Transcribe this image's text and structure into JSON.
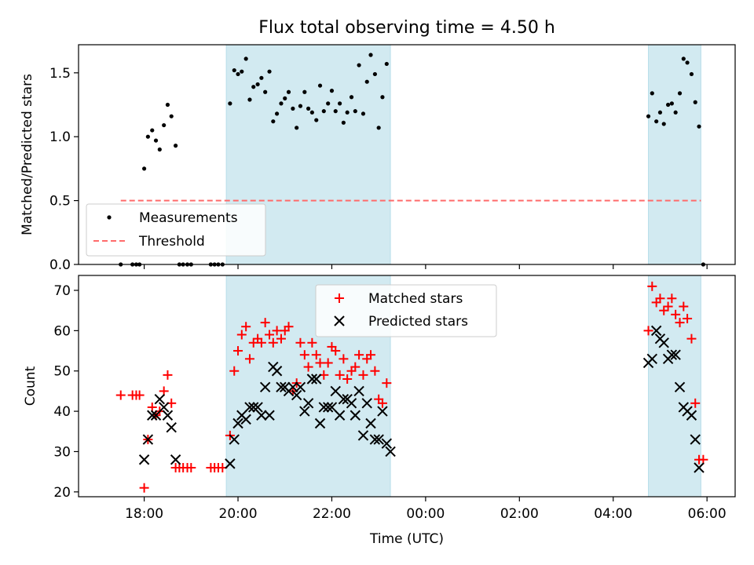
{
  "figure": {
    "title": "Flux total observing time = 4.50 h"
  },
  "chart_data": [
    {
      "type": "scatter",
      "ylabel": "Matched/Predicted stars",
      "xlim": [
        16.6,
        30.6
      ],
      "ylim": [
        0,
        1.72
      ],
      "yticks": [
        0.0,
        0.5,
        1.0,
        1.5
      ],
      "yticklabels": [
        "0.0",
        "0.5",
        "1.0",
        "1.5"
      ],
      "shaded_regions": [
        [
          19.75,
          23.25
        ],
        [
          28.75,
          29.87
        ]
      ],
      "threshold": {
        "name": "Threshold",
        "value": 0.5,
        "x_range": [
          17.5,
          29.87
        ],
        "color": "#ff6b6b"
      },
      "legend": {
        "placement": "lower-left",
        "entries": [
          "Measurements",
          "Threshold"
        ]
      },
      "series": [
        {
          "name": "Measurements",
          "marker": "dot",
          "color": "#000000",
          "points": [
            [
              17.5,
              0
            ],
            [
              17.75,
              0
            ],
            [
              17.83,
              0
            ],
            [
              17.9,
              0
            ],
            [
              18.0,
              0.75
            ],
            [
              18.08,
              1.0
            ],
            [
              18.17,
              1.05
            ],
            [
              18.25,
              0.97
            ],
            [
              18.33,
              0.9
            ],
            [
              18.42,
              1.09
            ],
            [
              18.5,
              1.25
            ],
            [
              18.58,
              1.16
            ],
            [
              18.67,
              0.93
            ],
            [
              18.75,
              0
            ],
            [
              18.83,
              0
            ],
            [
              18.92,
              0
            ],
            [
              19.0,
              0
            ],
            [
              19.42,
              0
            ],
            [
              19.5,
              0
            ],
            [
              19.58,
              0
            ],
            [
              19.67,
              0
            ],
            [
              19.83,
              1.26
            ],
            [
              19.92,
              1.52
            ],
            [
              20.0,
              1.49
            ],
            [
              20.08,
              1.51
            ],
            [
              20.17,
              1.61
            ],
            [
              20.25,
              1.29
            ],
            [
              20.33,
              1.39
            ],
            [
              20.42,
              1.41
            ],
            [
              20.5,
              1.46
            ],
            [
              20.58,
              1.35
            ],
            [
              20.67,
              1.51
            ],
            [
              20.75,
              1.12
            ],
            [
              20.83,
              1.18
            ],
            [
              20.92,
              1.26
            ],
            [
              21.0,
              1.3
            ],
            [
              21.08,
              1.35
            ],
            [
              21.17,
              1.22
            ],
            [
              21.25,
              1.07
            ],
            [
              21.33,
              1.24
            ],
            [
              21.42,
              1.35
            ],
            [
              21.5,
              1.22
            ],
            [
              21.58,
              1.19
            ],
            [
              21.67,
              1.13
            ],
            [
              21.75,
              1.4
            ],
            [
              21.83,
              1.2
            ],
            [
              21.92,
              1.26
            ],
            [
              22.0,
              1.36
            ],
            [
              22.08,
              1.2
            ],
            [
              22.17,
              1.26
            ],
            [
              22.25,
              1.11
            ],
            [
              22.33,
              1.19
            ],
            [
              22.42,
              1.31
            ],
            [
              22.5,
              1.2
            ],
            [
              22.58,
              1.56
            ],
            [
              22.67,
              1.18
            ],
            [
              22.75,
              1.43
            ],
            [
              22.83,
              1.64
            ],
            [
              22.92,
              1.49
            ],
            [
              23.0,
              1.07
            ],
            [
              23.08,
              1.31
            ],
            [
              23.17,
              1.57
            ],
            [
              28.75,
              1.16
            ],
            [
              28.83,
              1.34
            ],
            [
              28.92,
              1.12
            ],
            [
              29.0,
              1.19
            ],
            [
              29.08,
              1.1
            ],
            [
              29.17,
              1.25
            ],
            [
              29.25,
              1.26
            ],
            [
              29.33,
              1.19
            ],
            [
              29.42,
              1.34
            ],
            [
              29.5,
              1.61
            ],
            [
              29.58,
              1.58
            ],
            [
              29.67,
              1.49
            ],
            [
              29.75,
              1.27
            ],
            [
              29.83,
              1.08
            ],
            [
              29.92,
              0
            ]
          ]
        }
      ]
    },
    {
      "type": "scatter",
      "xlabel": "Time (UTC)",
      "ylabel": "Count",
      "xlim": [
        16.6,
        30.6
      ],
      "ylim": [
        18.8,
        73.7
      ],
      "yticks": [
        20,
        30,
        40,
        50,
        60,
        70
      ],
      "yticklabels": [
        "20",
        "30",
        "40",
        "50",
        "60",
        "70"
      ],
      "xticks": [
        18,
        20,
        22,
        24,
        26,
        28,
        30
      ],
      "xticklabels": [
        "18:00",
        "20:00",
        "22:00",
        "00:00",
        "02:00",
        "04:00",
        "06:00"
      ],
      "shaded_regions": [
        [
          19.75,
          23.25
        ],
        [
          28.75,
          29.87
        ]
      ],
      "legend": {
        "placement": "top-center",
        "entries": [
          "Matched stars",
          "Predicted stars"
        ]
      },
      "series": [
        {
          "name": "Matched stars",
          "marker": "plus",
          "color": "#ff0000",
          "points": [
            [
              17.5,
              44
            ],
            [
              17.75,
              44
            ],
            [
              17.83,
              44
            ],
            [
              17.9,
              44
            ],
            [
              18.0,
              21
            ],
            [
              18.08,
              33
            ],
            [
              18.17,
              41
            ],
            [
              18.25,
              39
            ],
            [
              18.33,
              40
            ],
            [
              18.42,
              45
            ],
            [
              18.5,
              49
            ],
            [
              18.58,
              42
            ],
            [
              18.67,
              26
            ],
            [
              18.75,
              26
            ],
            [
              18.83,
              26
            ],
            [
              18.92,
              26
            ],
            [
              19.0,
              26
            ],
            [
              19.42,
              26
            ],
            [
              19.5,
              26
            ],
            [
              19.58,
              26
            ],
            [
              19.67,
              26
            ],
            [
              19.83,
              34
            ],
            [
              19.92,
              50
            ],
            [
              20.0,
              55
            ],
            [
              20.08,
              59
            ],
            [
              20.17,
              61
            ],
            [
              20.25,
              53
            ],
            [
              20.33,
              57
            ],
            [
              20.42,
              58
            ],
            [
              20.5,
              57
            ],
            [
              20.58,
              62
            ],
            [
              20.67,
              59
            ],
            [
              20.75,
              57
            ],
            [
              20.83,
              60
            ],
            [
              20.92,
              58
            ],
            [
              21.0,
              60
            ],
            [
              21.08,
              61
            ],
            [
              21.17,
              45
            ],
            [
              21.25,
              47
            ],
            [
              21.33,
              57
            ],
            [
              21.42,
              54
            ],
            [
              21.5,
              51
            ],
            [
              21.58,
              57
            ],
            [
              21.67,
              54
            ],
            [
              21.75,
              52
            ],
            [
              21.83,
              49
            ],
            [
              21.92,
              52
            ],
            [
              22.0,
              56
            ],
            [
              22.08,
              55
            ],
            [
              22.17,
              49
            ],
            [
              22.25,
              53
            ],
            [
              22.33,
              48
            ],
            [
              22.42,
              50
            ],
            [
              22.5,
              51
            ],
            [
              22.58,
              54
            ],
            [
              22.67,
              49
            ],
            [
              22.75,
              53
            ],
            [
              22.83,
              54
            ],
            [
              22.92,
              50
            ],
            [
              23.0,
              43
            ],
            [
              23.08,
              42
            ],
            [
              23.17,
              47
            ],
            [
              28.75,
              60
            ],
            [
              28.83,
              71
            ],
            [
              28.92,
              67
            ],
            [
              29.0,
              68
            ],
            [
              29.08,
              65
            ],
            [
              29.17,
              66
            ],
            [
              29.25,
              68
            ],
            [
              29.33,
              64
            ],
            [
              29.42,
              62
            ],
            [
              29.5,
              66
            ],
            [
              29.58,
              63
            ],
            [
              29.67,
              58
            ],
            [
              29.75,
              42
            ],
            [
              29.83,
              28
            ],
            [
              29.92,
              28
            ]
          ]
        },
        {
          "name": "Predicted stars",
          "marker": "x",
          "color": "#000000",
          "points": [
            [
              18.0,
              28
            ],
            [
              18.08,
              33
            ],
            [
              18.17,
              39
            ],
            [
              18.25,
              39
            ],
            [
              18.33,
              43
            ],
            [
              18.42,
              41
            ],
            [
              18.5,
              39
            ],
            [
              18.58,
              36
            ],
            [
              18.67,
              28
            ],
            [
              19.83,
              27
            ],
            [
              19.92,
              33
            ],
            [
              20.0,
              37
            ],
            [
              20.08,
              39
            ],
            [
              20.17,
              38
            ],
            [
              20.25,
              41
            ],
            [
              20.33,
              41
            ],
            [
              20.42,
              41
            ],
            [
              20.5,
              39
            ],
            [
              20.58,
              46
            ],
            [
              20.67,
              39
            ],
            [
              20.75,
              51
            ],
            [
              20.83,
              50
            ],
            [
              20.92,
              46
            ],
            [
              21.0,
              46
            ],
            [
              21.08,
              45
            ],
            [
              21.17,
              46
            ],
            [
              21.25,
              44
            ],
            [
              21.33,
              46
            ],
            [
              21.42,
              40
            ],
            [
              21.5,
              42
            ],
            [
              21.58,
              48
            ],
            [
              21.67,
              48
            ],
            [
              21.75,
              37
            ],
            [
              21.83,
              41
            ],
            [
              21.92,
              41
            ],
            [
              22.0,
              41
            ],
            [
              22.08,
              45
            ],
            [
              22.17,
              39
            ],
            [
              22.25,
              43
            ],
            [
              22.33,
              43
            ],
            [
              22.42,
              42
            ],
            [
              22.5,
              39
            ],
            [
              22.58,
              45
            ],
            [
              22.67,
              34
            ],
            [
              22.75,
              42
            ],
            [
              22.83,
              37
            ],
            [
              22.92,
              33
            ],
            [
              23.0,
              33
            ],
            [
              23.08,
              40
            ],
            [
              23.17,
              32
            ],
            [
              23.25,
              30
            ],
            [
              28.75,
              52
            ],
            [
              28.83,
              53
            ],
            [
              28.92,
              60
            ],
            [
              29.0,
              58
            ],
            [
              29.08,
              57
            ],
            [
              29.17,
              53
            ],
            [
              29.25,
              54
            ],
            [
              29.33,
              54
            ],
            [
              29.42,
              46
            ],
            [
              29.5,
              41
            ],
            [
              29.58,
              40
            ],
            [
              29.67,
              39
            ],
            [
              29.75,
              33
            ],
            [
              29.83,
              26
            ]
          ]
        }
      ]
    }
  ]
}
